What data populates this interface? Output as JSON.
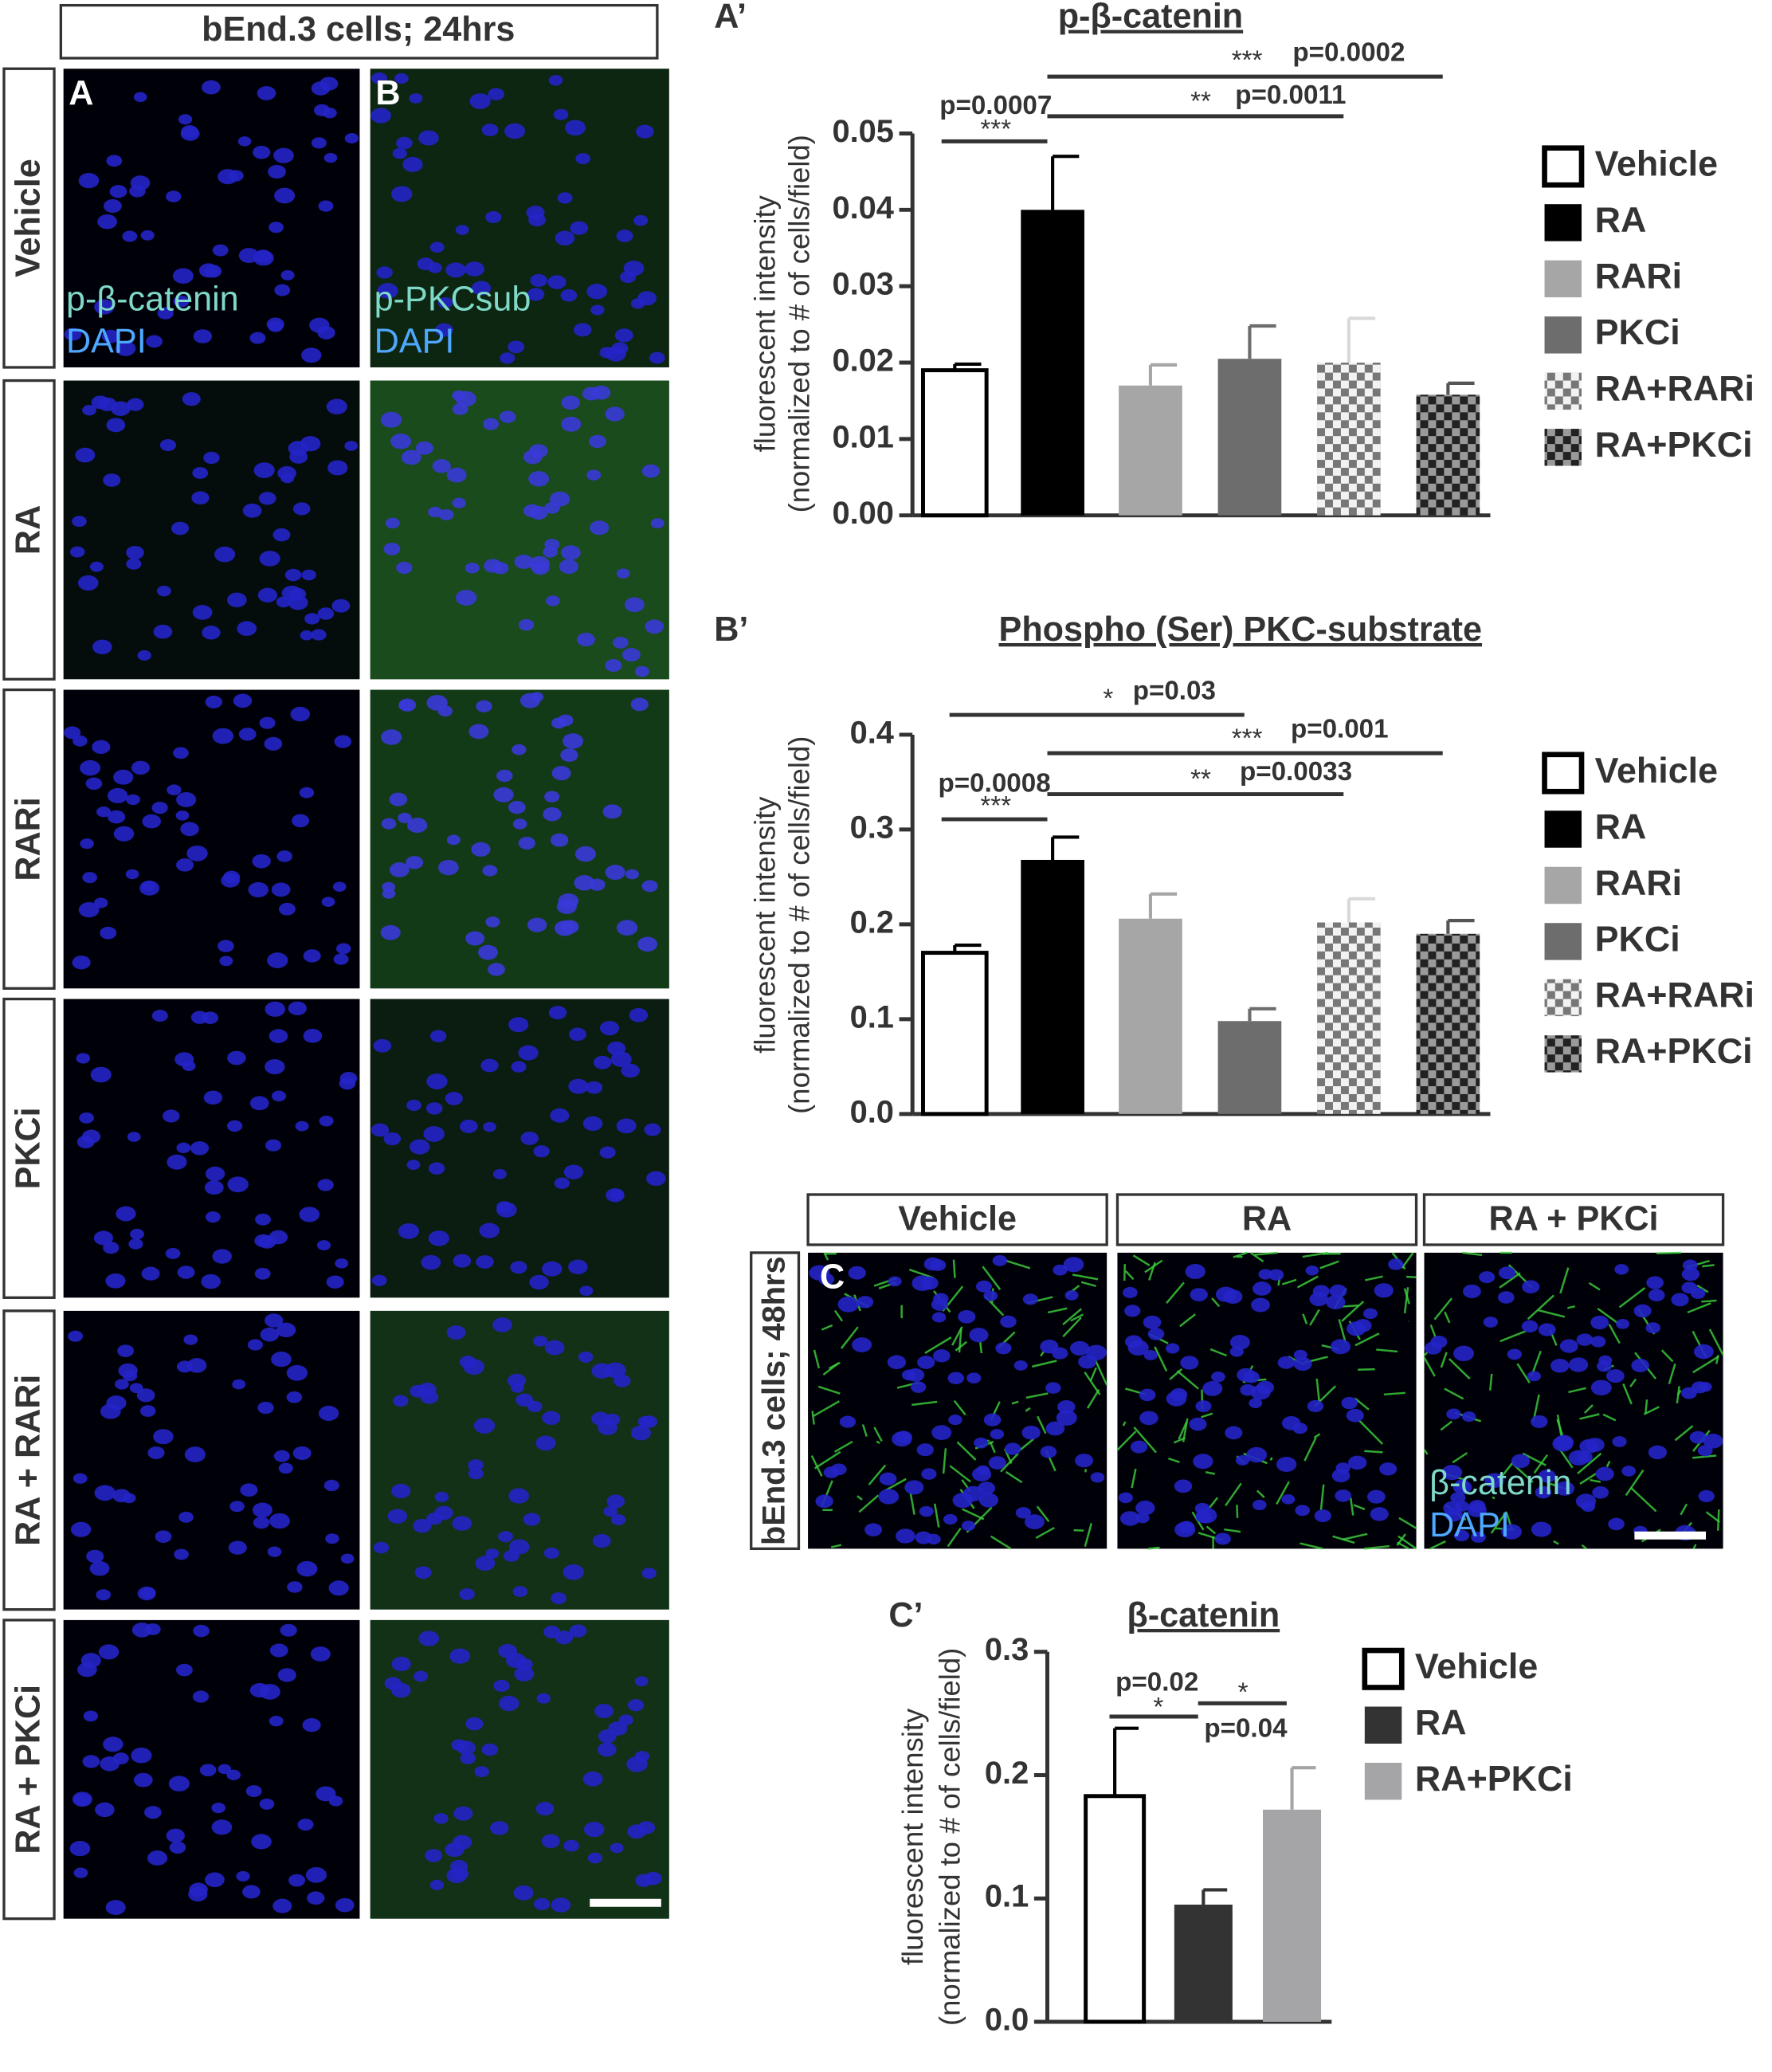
{
  "figure": {
    "left_header": "bEnd.3 cells; 24hrs",
    "rows": [
      "Vehicle",
      "RA",
      "RARi",
      "PKCi",
      "RA + RARi",
      "RA + PKCi"
    ],
    "letter_a": "A",
    "letter_b": "B",
    "stain_a": [
      "p-β-catenin",
      "DAPI"
    ],
    "stain_b": [
      "p-PKCsub",
      "DAPI"
    ],
    "c_columns": [
      "Vehicle",
      "RA",
      "RA + PKCi"
    ],
    "c_side": "bEnd.3 cells; 48hrs",
    "letter_c": "C",
    "stain_c": [
      "β-catenin",
      "DAPI"
    ]
  },
  "chart_data": [
    {
      "type": "bar",
      "letter": "A’",
      "title": "p-β-catenin",
      "ylabel": [
        "fluorescent intensity",
        "(normalized to # of cells/field)"
      ],
      "categories": [
        "Vehicle",
        "RA",
        "RARi",
        "PKCi",
        "RA+RARi",
        "RA+PKCi"
      ],
      "values": [
        0.019,
        0.04,
        0.017,
        0.0205,
        0.02,
        0.0158
      ],
      "errors": [
        0.0008,
        0.007,
        0.0027,
        0.0043,
        0.0058,
        0.0015
      ],
      "colors": [
        "#ffffff",
        "#000000",
        "#a6a6a6",
        "#6d6d6d",
        "#d9d9d9",
        "#555555"
      ],
      "patterns": [
        false,
        false,
        false,
        false,
        true,
        true
      ],
      "ylim": [
        0,
        0.05
      ],
      "yticks": [
        {
          "value": 0,
          "label": "0.00"
        },
        0.01,
        0.02,
        0.03,
        0.04,
        0.05
      ],
      "annotations": [
        {
          "from": 0,
          "to": 1,
          "stars": "***",
          "label": "p=0.0007"
        },
        {
          "from": 1,
          "to": 4,
          "stars": "**",
          "label": "p=0.0011"
        },
        {
          "from": 1,
          "to": 5,
          "stars": "***",
          "label": "p=0.0002"
        }
      ]
    },
    {
      "type": "bar",
      "letter": "B’",
      "title": "Phospho (Ser) PKC-substrate",
      "ylabel": [
        "fluorescent intensity",
        "(normalized to # of cells/field)"
      ],
      "categories": [
        "Vehicle",
        "RA",
        "RARi",
        "PKCi",
        "RA+RARi",
        "RA+PKCi"
      ],
      "values": [
        0.17,
        0.268,
        0.206,
        0.098,
        0.202,
        0.19
      ],
      "errors": [
        0.008,
        0.024,
        0.026,
        0.013,
        0.025,
        0.014
      ],
      "colors": [
        "#ffffff",
        "#000000",
        "#a6a6a6",
        "#6d6d6d",
        "#d9d9d9",
        "#555555"
      ],
      "patterns": [
        false,
        false,
        false,
        false,
        true,
        true
      ],
      "ylim": [
        0,
        0.4
      ],
      "yticks": [
        {
          "value": 0,
          "label": "0.0"
        },
        0.1,
        0.2,
        0.3,
        0.4
      ],
      "annotations": [
        {
          "from": 0,
          "to": 1,
          "stars": "***",
          "label": "p=0.0008"
        },
        {
          "from": 0,
          "to": 3,
          "stars": "*",
          "label": "p=0.03"
        },
        {
          "from": 1,
          "to": 5,
          "stars": "***",
          "label": "p=0.001"
        },
        {
          "from": 1,
          "to": 4,
          "stars": "**",
          "label": "p=0.0033"
        }
      ]
    },
    {
      "type": "bar",
      "letter": "C’",
      "title": "β-catenin",
      "ylabel": [
        "fluorescent intensity",
        "(normalized to # of cells/field)"
      ],
      "categories": [
        "Vehicle",
        "RA",
        "RA+PKCi"
      ],
      "values": [
        0.183,
        0.095,
        0.172
      ],
      "errors": [
        0.055,
        0.012,
        0.034
      ],
      "colors": [
        "#ffffff",
        "#333333",
        "#a5a5a8"
      ],
      "patterns": [
        false,
        false,
        false
      ],
      "ylim": [
        0,
        0.3
      ],
      "yticks": [
        {
          "value": 0,
          "label": "0.0"
        },
        0.1,
        0.2,
        0.3
      ],
      "annotations": [
        {
          "from": 0,
          "to": 1,
          "stars": "*",
          "label": "p=0.02"
        },
        {
          "from": 1,
          "to": 2,
          "stars": "*",
          "label": "p=0.04"
        }
      ]
    }
  ]
}
